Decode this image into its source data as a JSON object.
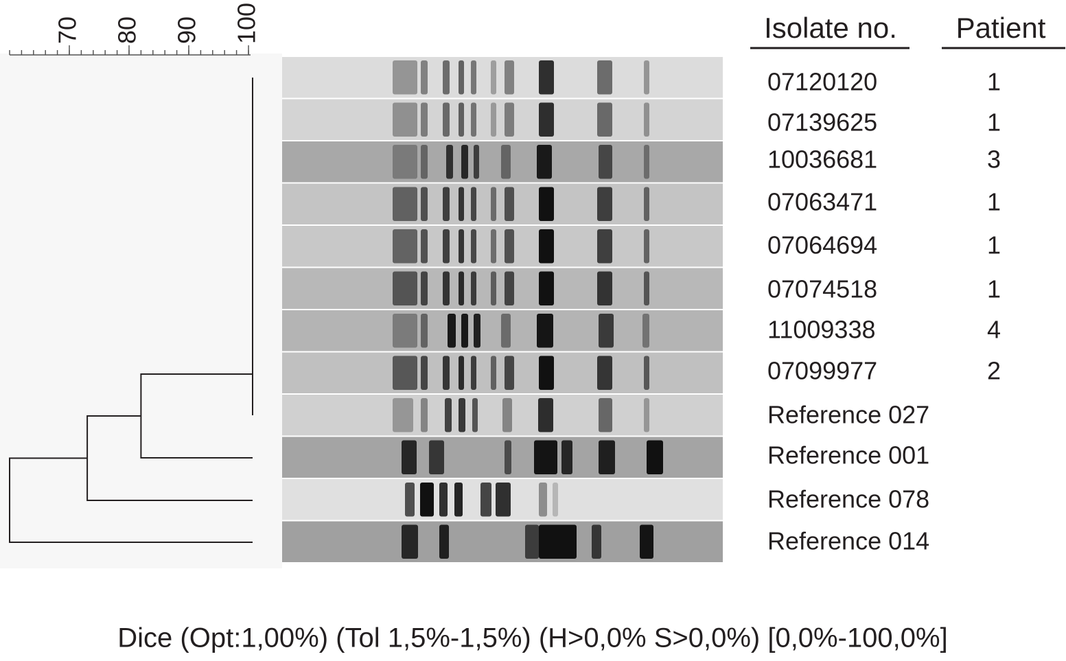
{
  "scale": {
    "range": [
      60,
      100
    ],
    "ticks": [
      70,
      80,
      90,
      100
    ],
    "minor_tick_interval": 2
  },
  "headers": {
    "isolate": "Isolate no.",
    "patient": "Patient"
  },
  "rows": [
    {
      "isolate": "07120120",
      "patient": "1"
    },
    {
      "isolate": "07139625",
      "patient": "1"
    },
    {
      "isolate": "10036681",
      "patient": "3"
    },
    {
      "isolate": "07063471",
      "patient": "1"
    },
    {
      "isolate": "07064694",
      "patient": "1"
    },
    {
      "isolate": "07074518",
      "patient": "1"
    },
    {
      "isolate": "11009338",
      "patient": "4"
    },
    {
      "isolate": "07099977",
      "patient": "2"
    },
    {
      "isolate": "Reference 027"
    },
    {
      "isolate": "Reference 001"
    },
    {
      "isolate": "Reference 078"
    },
    {
      "isolate": "Reference 014"
    }
  ],
  "dendrogram": {
    "cluster_similarity": 100,
    "merge_similarity": [
      82,
      73,
      60
    ]
  },
  "footer": "Dice (Opt:1,00%) (Tol 1,5%-1,5%) (H>0,0% S>0,0%) [0,0%-100,0%]"
}
